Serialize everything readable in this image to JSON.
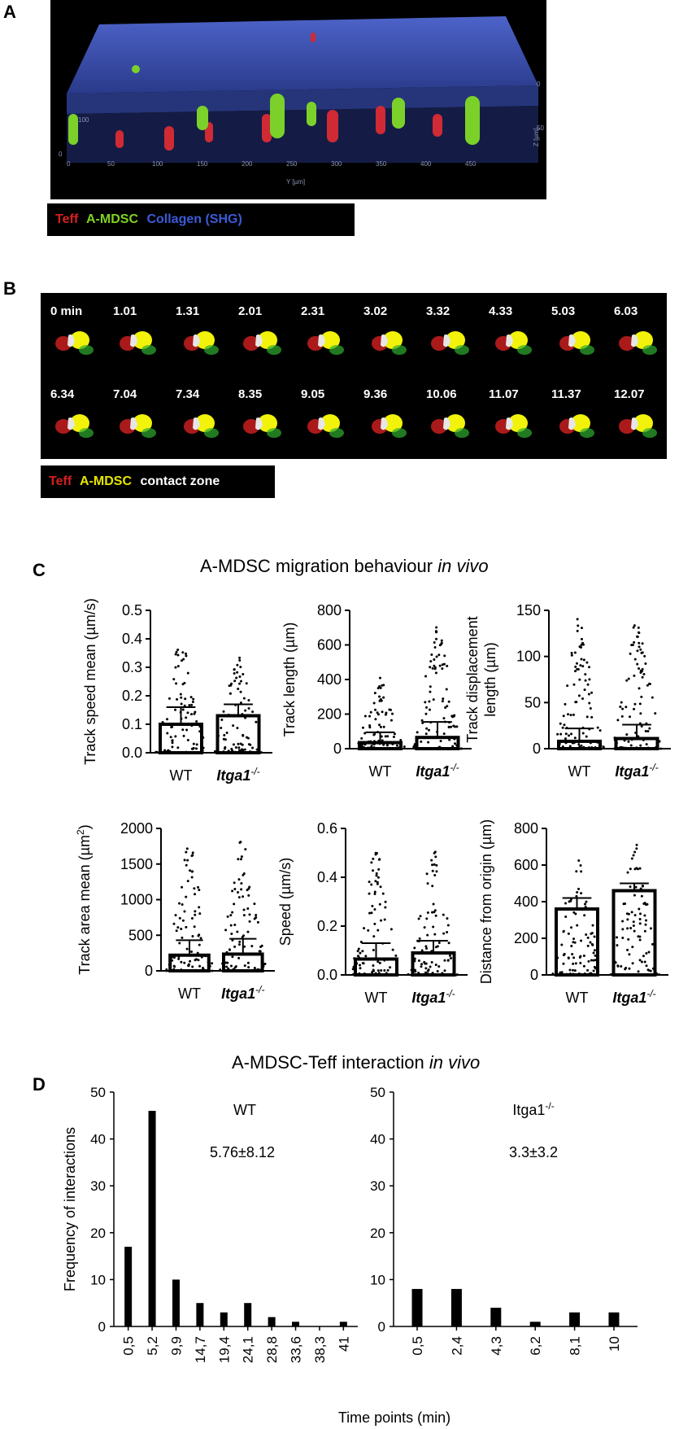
{
  "panels": {
    "a": "A",
    "b": "B",
    "c": "C",
    "d": "D"
  },
  "panel_a": {
    "legend": [
      {
        "text": "Teff",
        "color": "#d42020"
      },
      {
        "text": "A-MDSC",
        "color": "#7ed321"
      },
      {
        "text": "Collagen (SHG)",
        "color": "#3b5bd6"
      }
    ],
    "axis_y_ticks": [
      "0",
      "50",
      "100",
      "150",
      "200",
      "250",
      "300",
      "350",
      "400",
      "450"
    ],
    "axis_y_label": "Y [µm]",
    "axis_z_label": "Z [µm]",
    "axis_z_ticks": [
      "0",
      "50"
    ],
    "axis_x_ticks": [
      "100",
      "0"
    ]
  },
  "panel_b": {
    "row1": [
      "0 min",
      "1.01",
      "1.31",
      "2.01",
      "2.31",
      "3.02",
      "3.32",
      "4.33",
      "5.03",
      "6.03"
    ],
    "row2": [
      "6.34",
      "7.04",
      "7.34",
      "8.35",
      "9.05",
      "9.36",
      "10.06",
      "11.07",
      "11.37",
      "12.07"
    ],
    "legend": [
      {
        "text": "Teff",
        "color": "#d42020"
      },
      {
        "text": "A-MDSC",
        "color": "#e6e600"
      },
      {
        "text": "contact zone",
        "color": "#ffffff"
      }
    ]
  },
  "panel_c": {
    "title": "A-MDSC migration behaviour",
    "title_italic": "in vivo",
    "categories": [
      "WT",
      "Itga1"
    ],
    "cat2_sup": "-/-"
  },
  "panel_d": {
    "title": "A-MDSC-Teff interaction",
    "title_italic": "in vivo",
    "ylabel": "Frequency of interactions",
    "xlabel": "Time points (min)",
    "left_label": "WT",
    "left_stat": "5.76±8.12",
    "right_label": "Itga1",
    "right_sup": "-/-",
    "right_stat": "3.3±3.2"
  },
  "chart_data": [
    {
      "type": "bar",
      "categories": [
        "WT",
        "Itga1-/-"
      ],
      "values": [
        0.1,
        0.13
      ],
      "ylabel": "Track speed mean (µm/s)",
      "ylim": [
        0,
        0.5
      ],
      "yticks": [
        "0.0",
        "0.1",
        "0.2",
        "0.3",
        "0.4",
        "0.5"
      ],
      "spread_max": [
        0.4,
        0.34
      ],
      "err_upper": [
        0.16,
        0.17
      ]
    },
    {
      "type": "bar",
      "categories": [
        "WT",
        "Itga1-/-"
      ],
      "values": [
        35,
        65
      ],
      "ylabel": "Track length (µm)",
      "ylim": [
        0,
        800
      ],
      "yticks": [
        "0",
        "200",
        "400",
        "600",
        "800"
      ],
      "spread_max": [
        410,
        710
      ],
      "err_upper": [
        95,
        155
      ]
    },
    {
      "type": "bar",
      "categories": [
        "WT",
        "Itga1-/-"
      ],
      "values": [
        8,
        11
      ],
      "ylabel": "Track displacement length (µm)",
      "ylim": [
        0,
        150
      ],
      "yticks": [
        "0",
        "50",
        "100",
        "150"
      ],
      "spread_max": [
        145,
        137
      ],
      "err_upper": [
        22,
        26
      ]
    },
    {
      "type": "bar",
      "categories": [
        "WT",
        "Itga1-/-"
      ],
      "values": [
        220,
        235
      ],
      "ylabel": "Track area mean (µm2)",
      "ylim": [
        0,
        2000
      ],
      "yticks": [
        "0",
        "500",
        "1000",
        "1500",
        "2000"
      ],
      "spread_max": [
        1750,
        1920
      ],
      "err_upper": [
        430,
        450
      ]
    },
    {
      "type": "bar",
      "categories": [
        "WT",
        "Itga1-/-"
      ],
      "values": [
        0.065,
        0.09
      ],
      "ylabel": "Speed (µm/s)",
      "ylim": [
        0,
        0.6
      ],
      "yticks": [
        "0.0",
        "0.2",
        "0.4",
        "0.6"
      ],
      "spread_max": [
        0.51,
        0.51
      ],
      "err_upper": [
        0.13,
        0.14
      ]
    },
    {
      "type": "bar",
      "categories": [
        "WT",
        "Itga1-/-"
      ],
      "values": [
        360,
        460
      ],
      "ylabel": "Distance from origin (µm)",
      "ylim": [
        0,
        800
      ],
      "yticks": [
        "0",
        "200",
        "400",
        "600",
        "800"
      ],
      "spread_max": [
        680,
        720
      ],
      "err_upper": [
        420,
        500
      ]
    },
    {
      "type": "bar",
      "series_label": "WT",
      "categories": [
        "0,5",
        "5,2",
        "9,9",
        "14,7",
        "19,4",
        "24,1",
        "28,8",
        "33,6",
        "38,3",
        "41"
      ],
      "values": [
        17,
        46,
        10,
        5,
        3,
        5,
        2,
        1,
        0,
        1
      ],
      "ylim": [
        0,
        50
      ],
      "yticks": [
        "0",
        "10",
        "20",
        "30",
        "40",
        "50"
      ]
    },
    {
      "type": "bar",
      "series_label": "Itga1-/-",
      "categories": [
        "0,5",
        "2,4",
        "4,3",
        "6,2",
        "8,1",
        "10"
      ],
      "values": [
        8,
        8,
        4,
        1,
        3,
        3
      ],
      "ylim": [
        0,
        50
      ],
      "yticks": [
        "0",
        "10",
        "20",
        "30",
        "40",
        "50"
      ]
    }
  ]
}
